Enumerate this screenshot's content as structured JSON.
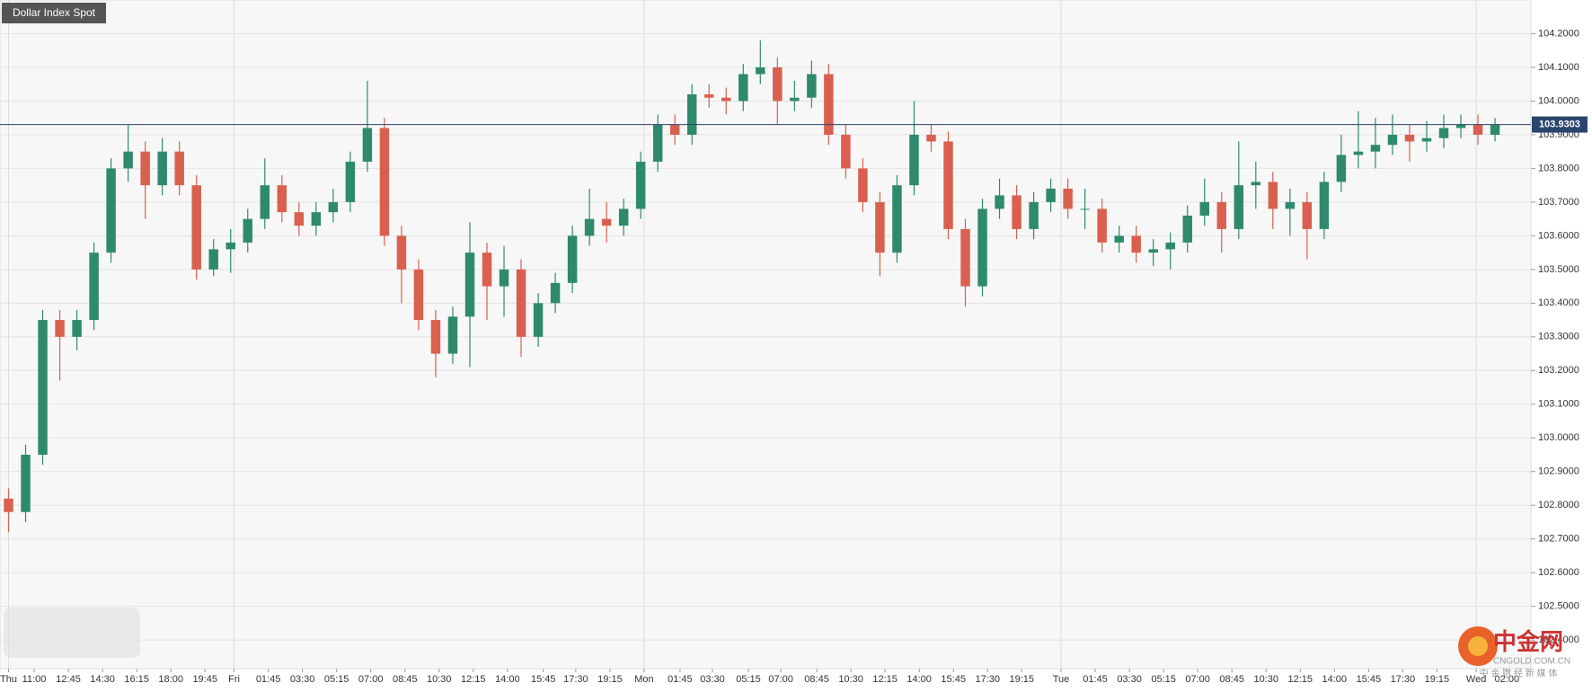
{
  "chart_data": {
    "type": "candlestick",
    "title": "Dollar Index Spot",
    "x": [
      0.5,
      1.5,
      2.5,
      3.5,
      4.5,
      5.5,
      6.5,
      7.5,
      8.5,
      9.5,
      10.5,
      11.5,
      12.5,
      13.5,
      14.5,
      15.5,
      16.5,
      17.5,
      18.5,
      19.5,
      20.5,
      21.5,
      22.5,
      23.5,
      24.5,
      25.5,
      26.5,
      27.5,
      28.5,
      29.5,
      30.5,
      31.5,
      32.5,
      33.5,
      34.5,
      35.5,
      36.5,
      37.5,
      38.5,
      39.5,
      40.5,
      41.5,
      42.5,
      43.5,
      44.5,
      45.5,
      46.5,
      47.5,
      48.5,
      49.5,
      50.5,
      51.5,
      52.5,
      53.5,
      54.5,
      55.5,
      56.5,
      57.5,
      58.5,
      59.5,
      60.5,
      61.5,
      62.5,
      63.5,
      64.5,
      65.5,
      66.5,
      67.5,
      68.5,
      69.5,
      70.5,
      71.5,
      72.5,
      73.5,
      74.5,
      75.5,
      76.5,
      77.5,
      78.5,
      79.5,
      80.5,
      81.5,
      82.5,
      83.5,
      84.5,
      85.5,
      86.5,
      87.5
    ],
    "open": [
      102.82,
      102.78,
      102.95,
      103.35,
      103.3,
      103.35,
      103.55,
      103.8,
      103.85,
      103.75,
      103.85,
      103.75,
      103.5,
      103.56,
      103.58,
      103.65,
      103.75,
      103.67,
      103.63,
      103.67,
      103.7,
      103.82,
      103.92,
      103.6,
      103.5,
      103.35,
      103.25,
      103.36,
      103.55,
      103.45,
      103.5,
      103.3,
      103.4,
      103.46,
      103.6,
      103.65,
      103.63,
      103.68,
      103.82,
      103.93,
      103.9,
      104.02,
      104.01,
      104.0,
      104.08,
      104.1,
      104.0,
      104.01,
      104.08,
      103.9,
      103.8,
      103.7,
      103.55,
      103.75,
      103.9,
      103.88,
      103.62,
      103.45,
      103.68,
      103.72,
      103.62,
      103.7,
      103.74,
      103.68,
      103.68,
      103.58,
      103.6,
      103.55,
      103.56,
      103.58,
      103.66,
      103.7,
      103.62,
      103.75,
      103.76,
      103.68,
      103.7,
      103.62,
      103.76,
      103.84,
      103.85,
      103.87,
      103.9,
      103.88,
      103.89,
      103.92,
      103.93,
      103.9
    ],
    "high": [
      102.85,
      102.98,
      103.38,
      103.38,
      103.38,
      103.58,
      103.83,
      103.93,
      103.88,
      103.89,
      103.88,
      103.78,
      103.59,
      103.62,
      103.68,
      103.83,
      103.78,
      103.7,
      103.7,
      103.74,
      103.85,
      104.06,
      103.95,
      103.63,
      103.53,
      103.38,
      103.39,
      103.64,
      103.58,
      103.57,
      103.53,
      103.43,
      103.49,
      103.63,
      103.74,
      103.7,
      103.71,
      103.85,
      103.96,
      103.96,
      104.05,
      104.05,
      104.04,
      104.11,
      104.18,
      104.13,
      104.06,
      104.12,
      104.11,
      103.93,
      103.83,
      103.73,
      103.78,
      104.0,
      103.93,
      103.91,
      103.65,
      103.71,
      103.77,
      103.75,
      103.73,
      103.77,
      103.77,
      103.74,
      103.71,
      103.63,
      103.63,
      103.59,
      103.61,
      103.69,
      103.77,
      103.73,
      103.88,
      103.82,
      103.79,
      103.74,
      103.73,
      103.79,
      103.9,
      103.97,
      103.95,
      103.96,
      103.93,
      103.94,
      103.96,
      103.96,
      103.96,
      103.95
    ],
    "low": [
      102.72,
      102.75,
      102.92,
      103.17,
      103.26,
      103.32,
      103.52,
      103.76,
      103.65,
      103.72,
      103.72,
      103.47,
      103.48,
      103.49,
      103.55,
      103.62,
      103.64,
      103.6,
      103.6,
      103.64,
      103.67,
      103.79,
      103.57,
      103.4,
      103.32,
      103.18,
      103.22,
      103.21,
      103.35,
      103.36,
      103.24,
      103.27,
      103.37,
      103.43,
      103.57,
      103.58,
      103.6,
      103.65,
      103.79,
      103.87,
      103.87,
      103.98,
      103.96,
      103.97,
      104.05,
      103.93,
      103.97,
      103.98,
      103.87,
      103.77,
      103.67,
      103.48,
      103.52,
      103.72,
      103.85,
      103.59,
      103.39,
      103.42,
      103.65,
      103.59,
      103.59,
      103.67,
      103.65,
      103.62,
      103.55,
      103.55,
      103.52,
      103.51,
      103.5,
      103.55,
      103.63,
      103.55,
      103.59,
      103.68,
      103.62,
      103.6,
      103.53,
      103.59,
      103.73,
      103.8,
      103.8,
      103.84,
      103.82,
      103.85,
      103.86,
      103.89,
      103.87,
      103.88
    ],
    "close": [
      102.78,
      102.95,
      103.35,
      103.3,
      103.35,
      103.55,
      103.8,
      103.85,
      103.75,
      103.85,
      103.75,
      103.5,
      103.56,
      103.58,
      103.65,
      103.75,
      103.67,
      103.63,
      103.67,
      103.7,
      103.82,
      103.92,
      103.6,
      103.5,
      103.35,
      103.25,
      103.36,
      103.55,
      103.45,
      103.5,
      103.3,
      103.4,
      103.46,
      103.6,
      103.65,
      103.63,
      103.68,
      103.82,
      103.93,
      103.9,
      104.02,
      104.01,
      104.0,
      104.08,
      104.1,
      104.0,
      104.01,
      104.08,
      103.9,
      103.8,
      103.7,
      103.55,
      103.75,
      103.9,
      103.88,
      103.62,
      103.45,
      103.68,
      103.72,
      103.62,
      103.7,
      103.74,
      103.68,
      103.68,
      103.58,
      103.6,
      103.55,
      103.56,
      103.58,
      103.66,
      103.7,
      103.62,
      103.75,
      103.76,
      103.68,
      103.7,
      103.62,
      103.76,
      103.84,
      103.85,
      103.87,
      103.9,
      103.88,
      103.89,
      103.92,
      103.93,
      103.9,
      103.93
    ],
    "up_color": "#2f8a6d",
    "down_color": "#d9604f",
    "last_price": 103.9303,
    "last_price_color": "#2b4470",
    "xlim": [
      0,
      89.6
    ],
    "xticks": [
      {
        "value": 0.5,
        "label": "Thu"
      },
      {
        "value": 2.0,
        "label": "11:00"
      },
      {
        "value": 4.0,
        "label": "12:45"
      },
      {
        "value": 6.0,
        "label": "14:30"
      },
      {
        "value": 8.0,
        "label": "16:15"
      },
      {
        "value": 10.0,
        "label": "18:00"
      },
      {
        "value": 12.0,
        "label": "19:45"
      },
      {
        "value": 13.7,
        "label": "Fri"
      },
      {
        "value": 15.7,
        "label": "01:45"
      },
      {
        "value": 17.7,
        "label": "03:30"
      },
      {
        "value": 19.7,
        "label": "05:15"
      },
      {
        "value": 21.7,
        "label": "07:00"
      },
      {
        "value": 23.7,
        "label": "08:45"
      },
      {
        "value": 25.7,
        "label": "10:30"
      },
      {
        "value": 27.7,
        "label": "12:15"
      },
      {
        "value": 29.7,
        "label": "14:00"
      },
      {
        "value": 31.8,
        "label": "15:45"
      },
      {
        "value": 33.7,
        "label": "17:30"
      },
      {
        "value": 35.7,
        "label": "19:15"
      },
      {
        "value": 37.7,
        "label": "Mon"
      },
      {
        "value": 39.8,
        "label": "01:45"
      },
      {
        "value": 41.7,
        "label": "03:30"
      },
      {
        "value": 43.8,
        "label": "05:15"
      },
      {
        "value": 45.7,
        "label": "07:00"
      },
      {
        "value": 47.8,
        "label": "08:45"
      },
      {
        "value": 49.8,
        "label": "10:30"
      },
      {
        "value": 51.8,
        "label": "12:15"
      },
      {
        "value": 53.8,
        "label": "14:00"
      },
      {
        "value": 55.8,
        "label": "15:45"
      },
      {
        "value": 57.8,
        "label": "17:30"
      },
      {
        "value": 59.8,
        "label": "19:15"
      },
      {
        "value": 62.1,
        "label": "Tue"
      },
      {
        "value": 64.1,
        "label": "01:45"
      },
      {
        "value": 66.1,
        "label": "03:30"
      },
      {
        "value": 68.1,
        "label": "05:15"
      },
      {
        "value": 70.1,
        "label": "07:00"
      },
      {
        "value": 72.1,
        "label": "08:45"
      },
      {
        "value": 74.1,
        "label": "10:30"
      },
      {
        "value": 76.1,
        "label": "12:15"
      },
      {
        "value": 78.1,
        "label": "14:00"
      },
      {
        "value": 80.1,
        "label": "15:45"
      },
      {
        "value": 82.1,
        "label": "17:30"
      },
      {
        "value": 84.1,
        "label": "19:15"
      },
      {
        "value": 86.4,
        "label": "Wed"
      },
      {
        "value": 88.2,
        "label": "02:00"
      }
    ],
    "ylim": [
      102.315,
      104.3
    ],
    "yticks": [
      {
        "value": 102.4,
        "label": "102.4000"
      },
      {
        "value": 102.5,
        "label": "102.5000"
      },
      {
        "value": 102.6,
        "label": "102.6000"
      },
      {
        "value": 102.7,
        "label": "102.7000"
      },
      {
        "value": 102.8,
        "label": "102.8000"
      },
      {
        "value": 102.9,
        "label": "102.9000"
      },
      {
        "value": 103.0,
        "label": "103.0000"
      },
      {
        "value": 103.1,
        "label": "103.1000"
      },
      {
        "value": 103.2,
        "label": "103.2000"
      },
      {
        "value": 103.3,
        "label": "103.3000"
      },
      {
        "value": 103.4,
        "label": "103.4000"
      },
      {
        "value": 103.5,
        "label": "103.5000"
      },
      {
        "value": 103.6,
        "label": "103.6000"
      },
      {
        "value": 103.7,
        "label": "103.7000"
      },
      {
        "value": 103.8,
        "label": "103.8000"
      },
      {
        "value": 103.9,
        "label": "103.9000"
      },
      {
        "value": 104.0,
        "label": "104.0000"
      },
      {
        "value": 104.1,
        "label": "104.1000"
      },
      {
        "value": 104.2,
        "label": "104.2000"
      }
    ],
    "grid": true
  },
  "watermark": {
    "brand": "中金网",
    "site": "CNGOLD.COM.CN",
    "slogan": "中 金 财 经 新 媒 体"
  }
}
